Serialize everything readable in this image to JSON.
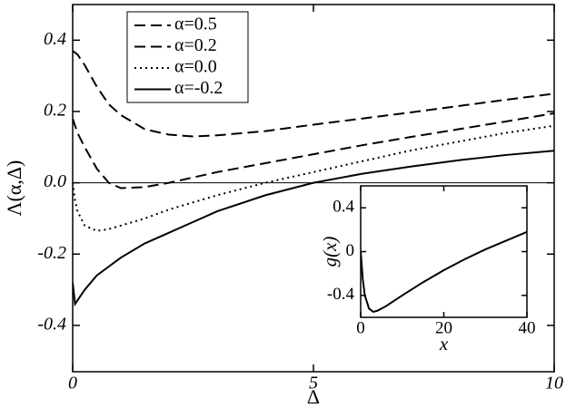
{
  "chart_data": [
    {
      "type": "line",
      "xlabel": "Δ",
      "ylabel": "Λ(α,Δ)",
      "x": [
        0,
        0.05,
        0.1,
        0.25,
        0.5,
        0.75,
        1,
        1.5,
        2,
        2.5,
        3,
        4,
        5,
        6,
        7,
        8,
        9,
        10
      ],
      "series": [
        {
          "name": "α=0.5",
          "color": "#000000",
          "dash": "dashed",
          "values": [
            0.37,
            0.365,
            0.36,
            0.33,
            0.27,
            0.22,
            0.19,
            0.15,
            0.135,
            0.13,
            0.133,
            0.145,
            0.163,
            0.18,
            0.197,
            0.215,
            0.233,
            0.25
          ]
        },
        {
          "name": "α=0.2",
          "color": "#000000",
          "dash": "dashed",
          "values": [
            0.18,
            0.16,
            0.14,
            0.1,
            0.04,
            0.0,
            -0.015,
            -0.012,
            0.0,
            0.015,
            0.03,
            0.055,
            0.08,
            0.105,
            0.128,
            0.15,
            0.172,
            0.195
          ]
        },
        {
          "name": "α=0.0",
          "color": "#000000",
          "dash": "dotted",
          "values": [
            0.0,
            -0.05,
            -0.08,
            -0.12,
            -0.135,
            -0.13,
            -0.12,
            -0.1,
            -0.075,
            -0.055,
            -0.035,
            0.0,
            0.03,
            0.06,
            0.09,
            0.115,
            0.14,
            0.16
          ]
        },
        {
          "name": "α=-0.2",
          "color": "#000000",
          "dash": "solid",
          "values": [
            -0.28,
            -0.34,
            -0.33,
            -0.3,
            -0.26,
            -0.235,
            -0.21,
            -0.17,
            -0.14,
            -0.11,
            -0.08,
            -0.035,
            0.0,
            0.025,
            0.045,
            0.063,
            0.078,
            0.09
          ]
        }
      ],
      "xlim": [
        0,
        10
      ],
      "xticks": [
        0,
        5,
        10
      ],
      "ylim": [
        -0.53,
        0.5
      ],
      "yticks": [
        -0.4,
        -0.2,
        {
          "value": 0,
          "label": "0.0"
        },
        0.2,
        0.4
      ],
      "legend": "upper left"
    },
    {
      "type": "line",
      "xlabel": "x",
      "ylabel": "g(x)",
      "x": [
        0,
        0.5,
        1,
        2,
        3,
        4,
        6,
        10,
        15,
        20,
        25,
        30,
        35,
        40
      ],
      "values": [
        0.0,
        -0.25,
        -0.4,
        -0.52,
        -0.55,
        -0.54,
        -0.5,
        -0.4,
        -0.28,
        -0.17,
        -0.07,
        0.02,
        0.1,
        0.18
      ],
      "color": "#000000",
      "xlim": [
        0,
        40
      ],
      "xticks": [
        0,
        20,
        40
      ],
      "ylim": [
        -0.6,
        0.6
      ],
      "yticks": [
        -0.4,
        0,
        0.4
      ]
    }
  ]
}
